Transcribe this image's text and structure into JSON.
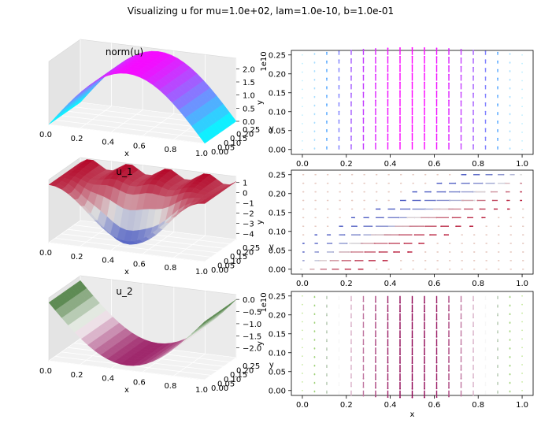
{
  "figure": {
    "suptitle": "Visualizing u for mu=1.0e+02, lam=1.0e-10, b=1.0e-01"
  },
  "chart_data": [
    {
      "type": "surface3d",
      "title": "norm(u)",
      "xlabel": "x",
      "ylabel": "y",
      "xticks": [
        "0.0",
        "0.2",
        "0.4",
        "0.6",
        "0.8",
        "1.0"
      ],
      "yticks": [
        "0.00",
        "0.05",
        "0.10",
        "0.15",
        "0.20",
        "0.25"
      ],
      "zticks": [
        "0.0",
        "0.5",
        "1.0",
        "1.5",
        "2.0"
      ],
      "zlim": [
        0,
        2.4
      ],
      "colormap": "cool",
      "colors": [
        "#00ffff",
        "#ff00ff"
      ]
    },
    {
      "type": "quiver",
      "title": "",
      "xlabel": "x",
      "ylabel": "y",
      "y_offset_label": "1e10",
      "xticks": [
        "0.0",
        "0.2",
        "0.4",
        "0.6",
        "0.8",
        "1.0"
      ],
      "yticks": [
        "0.00",
        "0.05",
        "0.10",
        "0.15",
        "0.20",
        "0.25"
      ],
      "xlim": [
        -0.05,
        1.05
      ],
      "ylim": [
        -0.013,
        0.262
      ],
      "colormap": "cool",
      "colors": [
        "#00ffff",
        "#ff00ff"
      ]
    },
    {
      "type": "surface3d",
      "title": "u_1",
      "xlabel": "x",
      "ylabel": "y",
      "xticks": [
        "0.0",
        "0.2",
        "0.4",
        "0.6",
        "0.8",
        "1.0"
      ],
      "yticks": [
        "0.00",
        "0.05",
        "0.10",
        "0.15",
        "0.20",
        "0.25"
      ],
      "zticks": [
        "1",
        "0",
        "−1",
        "−2",
        "−3",
        "−4"
      ],
      "zlim": [
        -4.6,
        1.6
      ],
      "colormap": "coolwarm",
      "colors": [
        "#3b4cc0",
        "#dddddd",
        "#b40426"
      ]
    },
    {
      "type": "quiver",
      "title": "",
      "xlabel": "x",
      "ylabel": "y",
      "xticks": [
        "0.0",
        "0.2",
        "0.4",
        "0.6",
        "0.8",
        "1.0"
      ],
      "yticks": [
        "0.00",
        "0.05",
        "0.10",
        "0.15",
        "0.20",
        "0.25"
      ],
      "xlim": [
        -0.05,
        1.05
      ],
      "ylim": [
        -0.013,
        0.262
      ],
      "colormap": "coolwarm",
      "colors": [
        "#3b4cc0",
        "#dddddd",
        "#b40426"
      ]
    },
    {
      "type": "surface3d",
      "title": "u_2",
      "xlabel": "x",
      "ylabel": "y",
      "xticks": [
        "0.0",
        "0.2",
        "0.4",
        "0.6",
        "0.8",
        "1.0"
      ],
      "yticks": [
        "0.00",
        "0.05",
        "0.10",
        "0.15",
        "0.20",
        "0.25"
      ],
      "zticks": [
        "0.0",
        "−0.5",
        "−1.0",
        "−1.5",
        "−2.0"
      ],
      "zlim": [
        -2.4,
        0.2
      ],
      "colormap": "PiYG",
      "colors": [
        "#8e0152",
        "#f7f7f7",
        "#276419"
      ]
    },
    {
      "type": "quiver",
      "title": "",
      "xlabel": "x",
      "ylabel": "y",
      "y_offset_label": "1e10",
      "xticks": [
        "0.0",
        "0.2",
        "0.4",
        "0.6",
        "0.8",
        "1.0"
      ],
      "yticks": [
        "0.00",
        "0.05",
        "0.10",
        "0.15",
        "0.20",
        "0.25"
      ],
      "xlim": [
        -0.05,
        1.05
      ],
      "ylim": [
        -0.013,
        0.262
      ],
      "colormap": "PiYG",
      "colors": [
        "#8e0152",
        "#f7f7f7",
        "#276419"
      ]
    }
  ]
}
